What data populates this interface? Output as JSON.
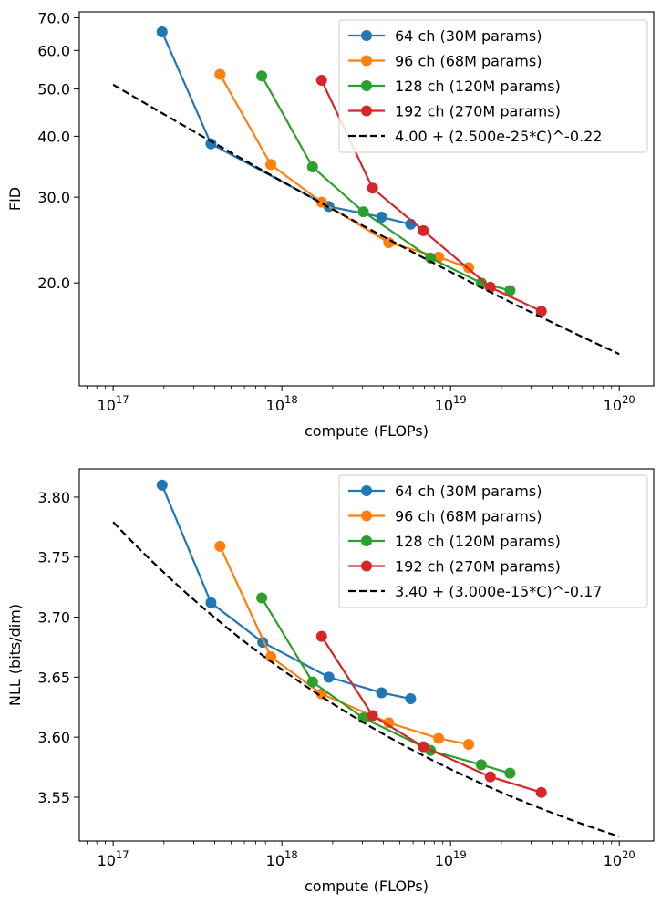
{
  "chart_data": [
    {
      "type": "line",
      "xscale": "log",
      "yscale": "log",
      "xlabel": "compute (FLOPs)",
      "ylabel": "FID",
      "xlim": [
        6.3e+16,
        1.6e+20
      ],
      "ylim": [
        12.3,
        72
      ],
      "xticks": [
        {
          "value": 1e+17,
          "base": "10",
          "exp": "17"
        },
        {
          "value": 1e+18,
          "base": "10",
          "exp": "18"
        },
        {
          "value": 1e+19,
          "base": "10",
          "exp": "19"
        },
        {
          "value": 1e+20,
          "base": "10",
          "exp": "20"
        }
      ],
      "yticks": [
        {
          "value": 70,
          "label": "70.0"
        },
        {
          "value": 60,
          "label": "60.0"
        },
        {
          "value": 50,
          "label": "50.0"
        },
        {
          "value": 40,
          "label": "40.0"
        },
        {
          "value": 30,
          "label": "30.0"
        },
        {
          "value": 20,
          "label": "20.0"
        }
      ],
      "legend_position": "top-right",
      "series": [
        {
          "name": "64 ch (30M params)",
          "color": "#1f77b4",
          "style": "solid-marker",
          "x": [
            1.95e+17,
            3.8e+17,
            1.9e+18,
            3.9e+18,
            5.8e+18
          ],
          "y": [
            65.5,
            38.6,
            28.7,
            27.3,
            26.4
          ]
        },
        {
          "name": "96 ch (68M params)",
          "color": "#ff7f0e",
          "style": "solid-marker",
          "x": [
            4.3e+17,
            8.6e+17,
            1.72e+18,
            4.3e+18,
            8.5e+18,
            1.28e+19
          ],
          "y": [
            53.6,
            35.0,
            29.3,
            24.2,
            22.6,
            21.5
          ]
        },
        {
          "name": "128 ch (120M params)",
          "color": "#2ca02c",
          "style": "solid-marker",
          "x": [
            7.6e+17,
            1.52e+18,
            3.04e+18,
            7.6e+18,
            1.52e+19,
            2.25e+19
          ],
          "y": [
            53.2,
            34.6,
            28.0,
            22.5,
            20.0,
            19.3
          ]
        },
        {
          "name": "192 ch (270M params)",
          "color": "#d62728",
          "style": "solid-marker",
          "x": [
            1.72e+18,
            3.45e+18,
            6.9e+18,
            1.72e+19,
            3.45e+19
          ],
          "y": [
            52.1,
            31.3,
            25.6,
            19.6,
            17.5
          ]
        },
        {
          "name": "4.00 + (2.500e-25*C)^-0.22",
          "color": "#000000",
          "style": "dashed",
          "fit": {
            "offset": 4.0,
            "scale": 2.5e-25,
            "exponent": -0.22
          },
          "x_range": [
            1e+17,
            1e+20
          ]
        }
      ]
    },
    {
      "type": "line",
      "xscale": "log",
      "yscale": "linear",
      "xlabel": "compute (FLOPs)",
      "ylabel": "NLL (bits/dim)",
      "xlim": [
        6.3e+16,
        1.6e+20
      ],
      "ylim": [
        3.5135,
        3.8235
      ],
      "xticks": [
        {
          "value": 1e+17,
          "base": "10",
          "exp": "17"
        },
        {
          "value": 1e+18,
          "base": "10",
          "exp": "18"
        },
        {
          "value": 1e+19,
          "base": "10",
          "exp": "19"
        },
        {
          "value": 1e+20,
          "base": "10",
          "exp": "20"
        }
      ],
      "yticks": [
        {
          "value": 3.8,
          "label": "3.80"
        },
        {
          "value": 3.75,
          "label": "3.75"
        },
        {
          "value": 3.7,
          "label": "3.70"
        },
        {
          "value": 3.65,
          "label": "3.65"
        },
        {
          "value": 3.6,
          "label": "3.60"
        },
        {
          "value": 3.55,
          "label": "3.55"
        }
      ],
      "legend_position": "top-right",
      "series": [
        {
          "name": "64 ch (30M params)",
          "color": "#1f77b4",
          "style": "solid-marker",
          "x": [
            1.95e+17,
            3.8e+17,
            7.7e+17,
            1.9e+18,
            3.9e+18,
            5.8e+18
          ],
          "y": [
            3.81,
            3.712,
            3.679,
            3.65,
            3.637,
            3.632
          ]
        },
        {
          "name": "96 ch (68M params)",
          "color": "#ff7f0e",
          "style": "solid-marker",
          "x": [
            4.3e+17,
            8.6e+17,
            1.72e+18,
            4.3e+18,
            8.5e+18,
            1.28e+19
          ],
          "y": [
            3.759,
            3.667,
            3.636,
            3.612,
            3.599,
            3.594
          ]
        },
        {
          "name": "128 ch (120M params)",
          "color": "#2ca02c",
          "style": "solid-marker",
          "x": [
            7.6e+17,
            1.52e+18,
            3.04e+18,
            7.6e+18,
            1.52e+19,
            2.25e+19
          ],
          "y": [
            3.716,
            3.646,
            3.616,
            3.589,
            3.577,
            3.57
          ]
        },
        {
          "name": "192 ch (270M params)",
          "color": "#d62728",
          "style": "solid-marker",
          "x": [
            1.72e+18,
            3.45e+18,
            6.9e+18,
            1.72e+19,
            3.45e+19
          ],
          "y": [
            3.684,
            3.618,
            3.592,
            3.567,
            3.554
          ]
        },
        {
          "name": "3.40 + (3.000e-15*C)^-0.17",
          "color": "#000000",
          "style": "dashed",
          "fit": {
            "offset": 3.4,
            "scale": 3e-15,
            "exponent": -0.17
          },
          "x_range": [
            1e+17,
            1e+20
          ]
        }
      ]
    }
  ]
}
